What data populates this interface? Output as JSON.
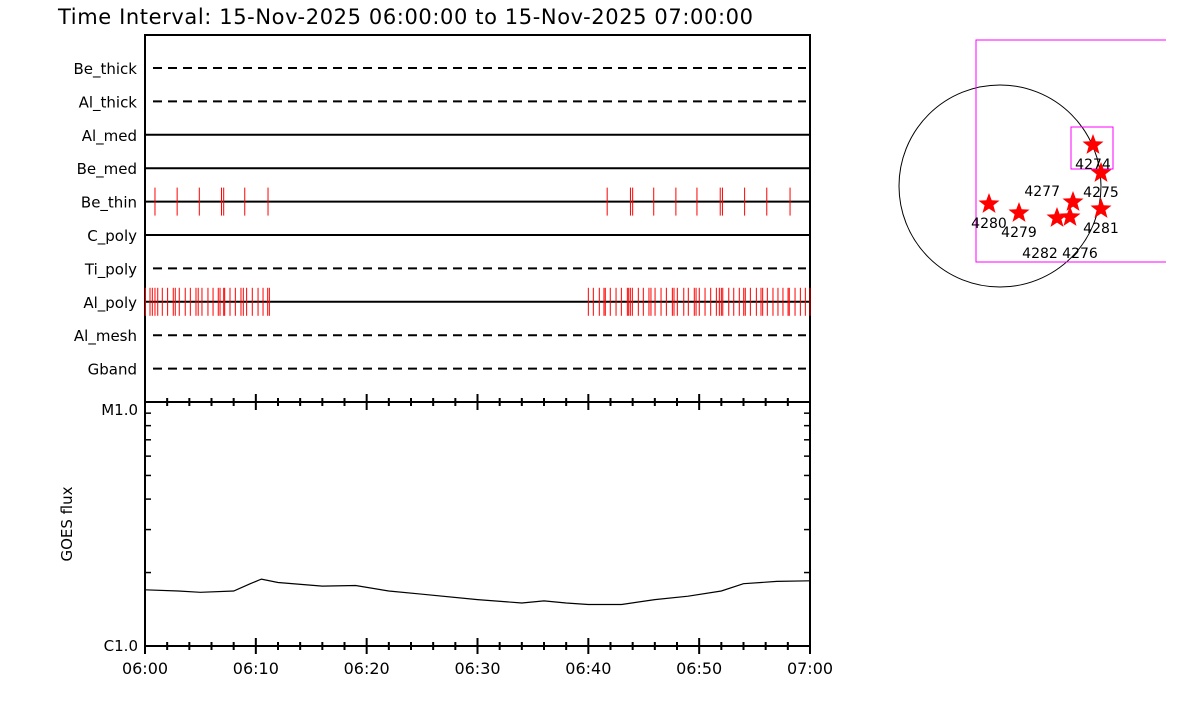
{
  "title": "Time Interval: 15-Nov-2025 06:00:00 to 15-Nov-2025 07:00:00",
  "colors": {
    "event_tick": "#ff0000",
    "fov_box": "#ff00ff",
    "star": "#ff0000",
    "axis": "#000000"
  },
  "chart_data": [
    {
      "type": "timeline",
      "xlim_minutes_after_0600": [
        0,
        60
      ],
      "rows": [
        {
          "name": "Be_thick",
          "style": "dashed",
          "events": []
        },
        {
          "name": "Al_thick",
          "style": "dashed",
          "events": []
        },
        {
          "name": "Al_med",
          "style": "solid",
          "events": []
        },
        {
          "name": "Be_med",
          "style": "solid",
          "events": []
        },
        {
          "name": "Be_thin",
          "style": "solid",
          "events": [
            0.9,
            2.9,
            4.9,
            6.9,
            7.1,
            9.0,
            11.1,
            41.7,
            43.8,
            44.0,
            45.9,
            47.9,
            49.8,
            51.9,
            52.1,
            54.1,
            56.1,
            58.2
          ]
        },
        {
          "name": "C_poly",
          "style": "solid",
          "events": []
        },
        {
          "name": "Ti_poly",
          "style": "dashed",
          "events": []
        },
        {
          "name": "Al_poly",
          "style": "solid",
          "events": [
            0.03,
            0.45,
            0.66,
            0.9,
            1.15,
            1.56,
            2.04,
            2.55,
            2.73,
            3.09,
            3.63,
            4.09,
            4.6,
            4.8,
            5.14,
            5.68,
            6.14,
            6.61,
            6.77,
            7.1,
            7.19,
            7.67,
            8.15,
            8.66,
            8.87,
            9.17,
            9.68,
            10.2,
            10.65,
            11.07,
            11.22,
            40.0,
            40.45,
            40.99,
            41.41,
            41.53,
            41.98,
            42.5,
            42.98,
            43.52,
            43.64,
            43.79,
            43.97,
            44.51,
            44.96,
            45.47,
            45.65,
            46.02,
            46.56,
            47.04,
            47.58,
            47.73,
            48.03,
            48.61,
            49.02,
            49.56,
            49.72,
            50.01,
            50.53,
            51.04,
            51.55,
            51.82,
            52.0,
            52.13,
            52.67,
            53.12,
            53.62,
            54.02,
            54.16,
            54.62,
            55.16,
            55.58,
            55.73,
            56.15,
            56.66,
            57.11,
            57.56,
            58.02,
            58.13,
            58.65,
            59.13,
            59.58,
            60.0
          ]
        },
        {
          "name": "Al_mesh",
          "style": "dashed",
          "events": []
        },
        {
          "name": "Gband",
          "style": "dashed",
          "events": []
        }
      ]
    },
    {
      "type": "line",
      "ylabel": "GOES flux",
      "yscale": "log",
      "ylim_C_class": [
        1.0,
        10.0
      ],
      "y_tick_labels": [
        "C1.0",
        "M1.0"
      ],
      "x_tick_labels": [
        "06:00",
        "06:10",
        "06:20",
        "06:30",
        "06:40",
        "06:50",
        "07:00"
      ],
      "x_minutes": [
        0,
        3,
        5,
        8,
        9.5,
        10.5,
        12,
        16,
        19,
        22,
        25,
        30,
        34,
        36,
        38,
        40,
        43,
        46,
        49,
        52,
        54,
        57,
        60
      ],
      "y_C_class": [
        1.7,
        1.68,
        1.66,
        1.68,
        1.8,
        1.88,
        1.82,
        1.76,
        1.77,
        1.68,
        1.63,
        1.55,
        1.5,
        1.53,
        1.5,
        1.48,
        1.48,
        1.55,
        1.6,
        1.68,
        1.8,
        1.84,
        1.85
      ]
    },
    {
      "type": "map",
      "regions": [
        {
          "label": "4274"
        },
        {
          "label": "4275"
        },
        {
          "label": "4277"
        },
        {
          "label": "4276"
        },
        {
          "label": "4282"
        },
        {
          "label": "4281"
        },
        {
          "label": "4280"
        },
        {
          "label": "4279"
        }
      ]
    }
  ]
}
